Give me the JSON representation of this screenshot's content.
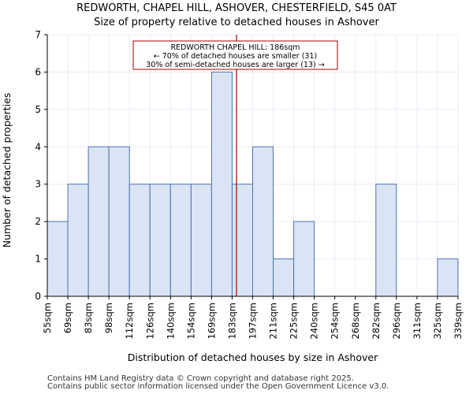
{
  "chart_data": {
    "type": "bar",
    "title": "REDWORTH, CHAPEL HILL, ASHOVER, CHESTERFIELD, S45 0AT",
    "subtitle": "Size of property relative to detached houses in Ashover",
    "xlabel": "Distribution of detached houses by size in Ashover",
    "ylabel": "Number of detached properties",
    "bin_edges": [
      55,
      69,
      83,
      98,
      112,
      126,
      140,
      154,
      169,
      183,
      197,
      211,
      225,
      240,
      254,
      268,
      282,
      296,
      311,
      325,
      339
    ],
    "tick_labels": [
      "55sqm",
      "69sqm",
      "83sqm",
      "98sqm",
      "112sqm",
      "126sqm",
      "140sqm",
      "154sqm",
      "169sqm",
      "183sqm",
      "197sqm",
      "211sqm",
      "225sqm",
      "240sqm",
      "254sqm",
      "268sqm",
      "282sqm",
      "296sqm",
      "311sqm",
      "325sqm",
      "339sqm"
    ],
    "values": [
      2,
      3,
      4,
      4,
      3,
      3,
      3,
      3,
      6,
      3,
      4,
      1,
      2,
      0,
      0,
      0,
      3,
      0,
      0,
      1
    ],
    "ylim": [
      0,
      7
    ],
    "yticks": [
      0,
      1,
      2,
      3,
      4,
      5,
      6,
      7
    ],
    "property_size": 186,
    "annotation": {
      "line1": "REDWORTH CHAPEL HILL: 186sqm",
      "line2": "← 70% of detached houses are smaller (31)",
      "line3": "30% of semi-detached houses are larger (13) →"
    },
    "colors": {
      "bar_fill": "#dae4f4",
      "bar_edge": "#4f73ae",
      "marker": "#aa0000",
      "grid": "#e8edf6"
    }
  },
  "footer": {
    "line1": "Contains HM Land Registry data © Crown copyright and database right 2025.",
    "line2": "Contains public sector information licensed under the Open Government Licence v3.0."
  }
}
